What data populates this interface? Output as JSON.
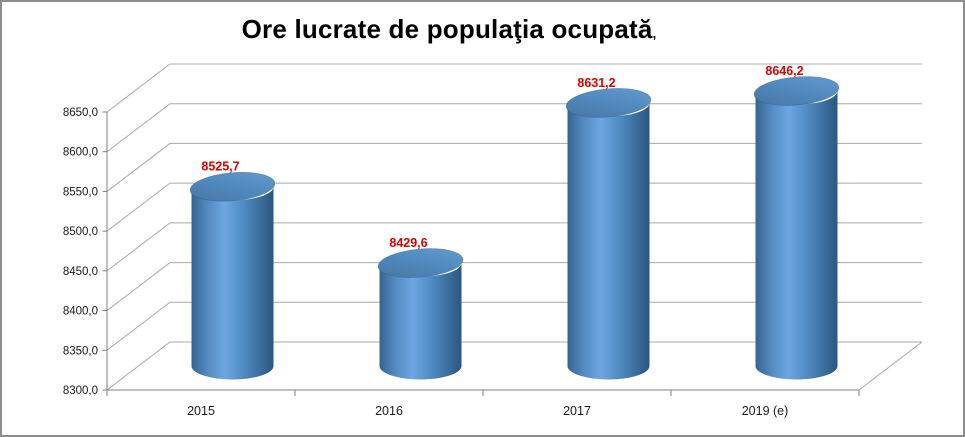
{
  "title_suffix": ",",
  "chart_data": {
    "type": "bar",
    "subtype": "3d-cylinder",
    "title": "Ore lucrate de populaţia ocupată",
    "categories": [
      "2015",
      "2016",
      "2017",
      "2019 (e)"
    ],
    "values": [
      8525.7,
      8429.6,
      8631.2,
      8646.2
    ],
    "data_labels": [
      "8525,7",
      "8429,6",
      "8631,2",
      "8646,2"
    ],
    "series_name": "Ore lucrate",
    "xlabel": "",
    "ylabel": "",
    "ylim": [
      8300,
      8650
    ],
    "ytick_step": 50,
    "ytick_labels": [
      "8300,0",
      "8350,0",
      "8400,0",
      "8450,0",
      "8500,0",
      "8550,0",
      "8600,0",
      "8650,0"
    ],
    "grid": true,
    "legend": "none",
    "colors": {
      "data_label_red": "#e00000",
      "grid_line": "#a8a8a8",
      "axis_line": "#808080",
      "tick_text": "#1a1a1a",
      "cylinder_edge": "#2d5a86",
      "cylinder_body_gradient": [
        "#36648f",
        "#5288bf",
        "#6da6e0",
        "#5490c8",
        "#2b567f"
      ],
      "cylinder_top_gradient": [
        "#45759f",
        "#528bc0",
        "#659dd3"
      ]
    }
  }
}
